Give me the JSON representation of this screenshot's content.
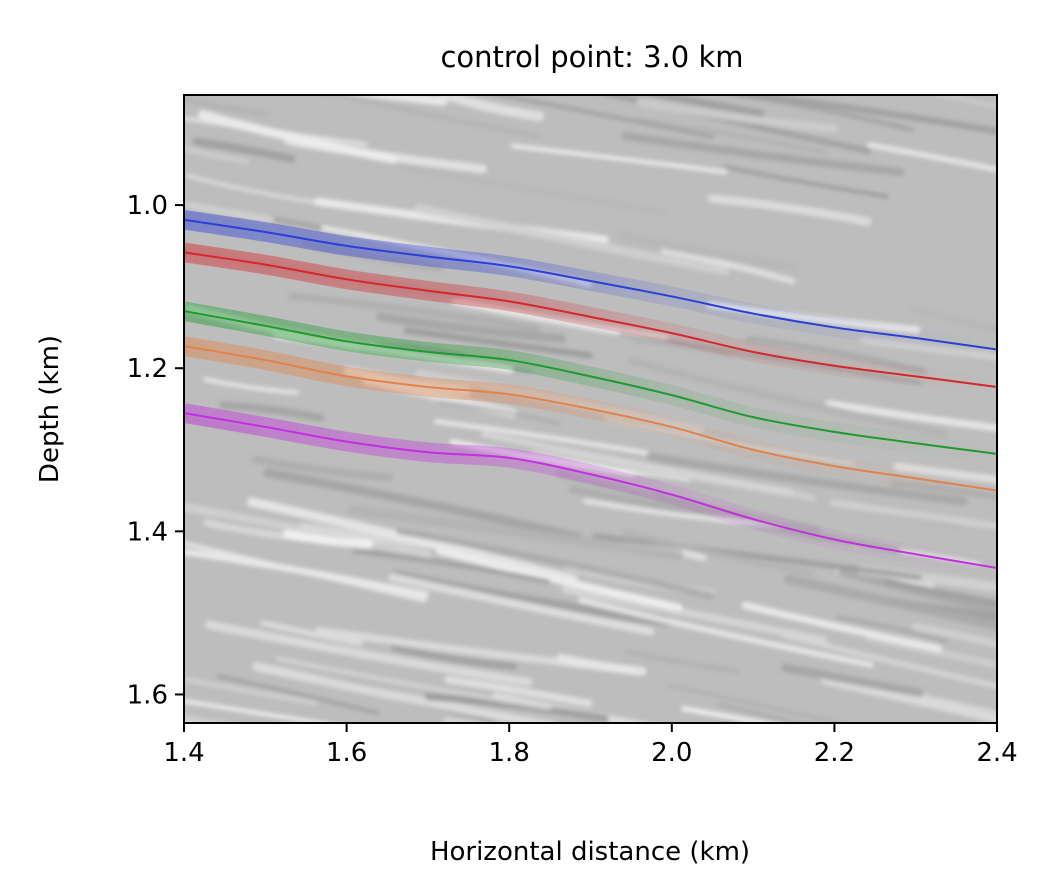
{
  "chart_data": {
    "type": "line",
    "title": "control point: 3.0 km",
    "xlabel": "Horizontal distance (km)",
    "ylabel": "Depth (km)",
    "xlim": [
      1.4,
      2.4
    ],
    "ylim": [
      1.635,
      0.865
    ],
    "y_inverted": true,
    "background": "grayscale seismic image",
    "x_ticks": [
      1.4,
      1.6,
      1.8,
      2.0,
      2.2,
      2.4
    ],
    "x_tick_labels": [
      "1.4",
      "1.6",
      "1.8",
      "2.0",
      "2.2",
      "2.4"
    ],
    "y_ticks": [
      1.0,
      1.2,
      1.4,
      1.6
    ],
    "y_tick_labels": [
      "1.0",
      "1.2",
      "1.4",
      "1.6"
    ],
    "grid": false,
    "legend": "none",
    "series": [
      {
        "color": "#2b3fd6",
        "band_halfwidth": 0.012,
        "x": [
          1.4,
          1.5,
          1.6,
          1.7,
          1.8,
          1.9,
          2.0,
          2.1,
          2.2,
          2.3,
          2.4
        ],
        "y": [
          1.018,
          1.033,
          1.05,
          1.063,
          1.075,
          1.093,
          1.112,
          1.133,
          1.15,
          1.163,
          1.177
        ]
      },
      {
        "color": "#d6262b",
        "band_halfwidth": 0.012,
        "x": [
          1.4,
          1.5,
          1.6,
          1.7,
          1.8,
          1.9,
          2.0,
          2.1,
          2.2,
          2.3,
          2.4
        ],
        "y": [
          1.058,
          1.073,
          1.091,
          1.105,
          1.118,
          1.137,
          1.157,
          1.18,
          1.197,
          1.21,
          1.223
        ]
      },
      {
        "color": "#1e9a2f",
        "band_halfwidth": 0.012,
        "x": [
          1.4,
          1.5,
          1.6,
          1.7,
          1.8,
          1.9,
          2.0,
          2.1,
          2.2,
          2.3,
          2.4
        ],
        "y": [
          1.13,
          1.148,
          1.167,
          1.18,
          1.19,
          1.21,
          1.233,
          1.26,
          1.278,
          1.292,
          1.305
        ]
      },
      {
        "color": "#e0834a",
        "band_halfwidth": 0.012,
        "x": [
          1.4,
          1.5,
          1.6,
          1.7,
          1.8,
          1.9,
          2.0,
          2.1,
          2.2,
          2.3,
          2.4
        ],
        "y": [
          1.173,
          1.19,
          1.21,
          1.223,
          1.232,
          1.25,
          1.272,
          1.3,
          1.32,
          1.335,
          1.35
        ]
      },
      {
        "color": "#c22fde",
        "band_halfwidth": 0.012,
        "x": [
          1.4,
          1.5,
          1.6,
          1.7,
          1.8,
          1.9,
          2.0,
          2.1,
          2.2,
          2.3,
          2.4
        ],
        "y": [
          1.255,
          1.272,
          1.29,
          1.303,
          1.31,
          1.33,
          1.355,
          1.385,
          1.41,
          1.428,
          1.445
        ]
      }
    ]
  }
}
